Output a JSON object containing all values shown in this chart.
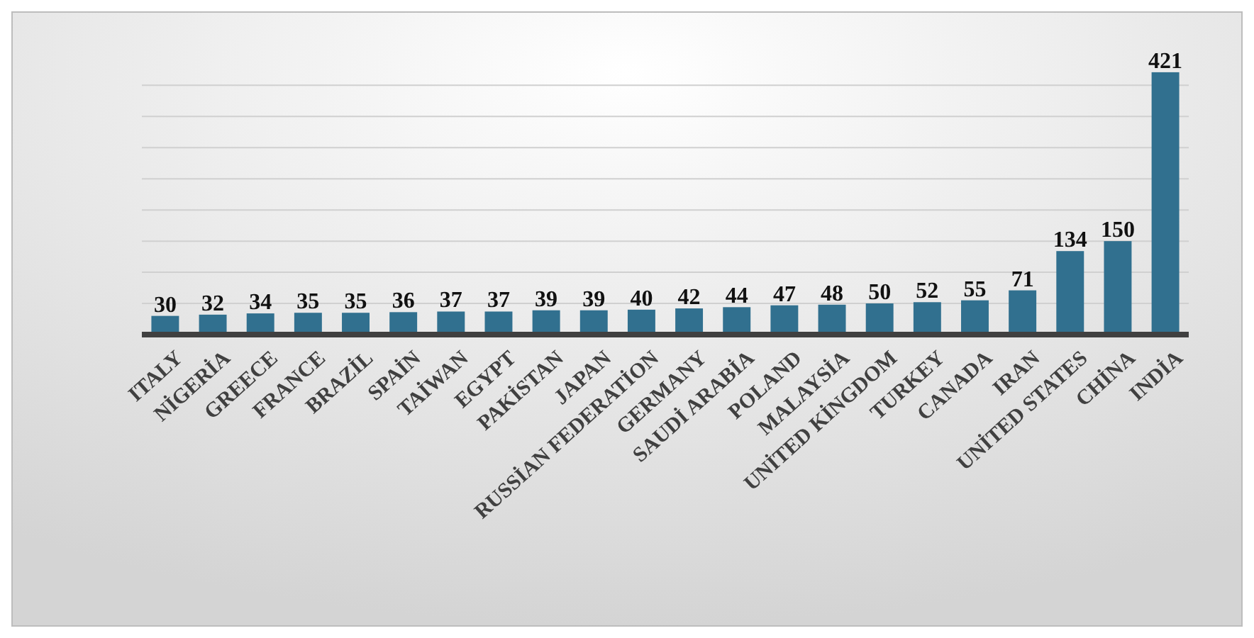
{
  "chart_data": {
    "type": "bar",
    "categories": [
      "ITALY",
      "NİGERİA",
      "GREECE",
      "FRANCE",
      "BRAZİL",
      "SPAİN",
      "TAİWAN",
      "EGYPT",
      "PAKİSTAN",
      "JAPAN",
      "RUSSİAN FEDERATİON",
      "GERMANY",
      "SAUDİ ARABİA",
      "POLAND",
      "MALAYSİA",
      "UNİTED KİNGDOM",
      "TURKEY",
      "CANADA",
      "IRAN",
      "UNİTED STATES",
      "CHİNA",
      "INDİA"
    ],
    "values": [
      30,
      32,
      34,
      35,
      35,
      36,
      37,
      37,
      39,
      39,
      40,
      42,
      44,
      47,
      48,
      50,
      52,
      55,
      71,
      134,
      150,
      421
    ],
    "color": "#31708f",
    "yticks": [
      {
        "value": 0,
        "label": null
      },
      {
        "value": 50,
        "label": null
      },
      {
        "value": 100,
        "label": null
      },
      {
        "value": 150,
        "label": null
      },
      {
        "value": 200,
        "label": null
      },
      {
        "value": 250,
        "label": null
      },
      {
        "value": 300,
        "label": null
      },
      {
        "value": 350,
        "label": null
      },
      {
        "value": 400,
        "label": null
      }
    ],
    "tick_labels": "x",
    "grid": "y",
    "data_labels": true
  }
}
